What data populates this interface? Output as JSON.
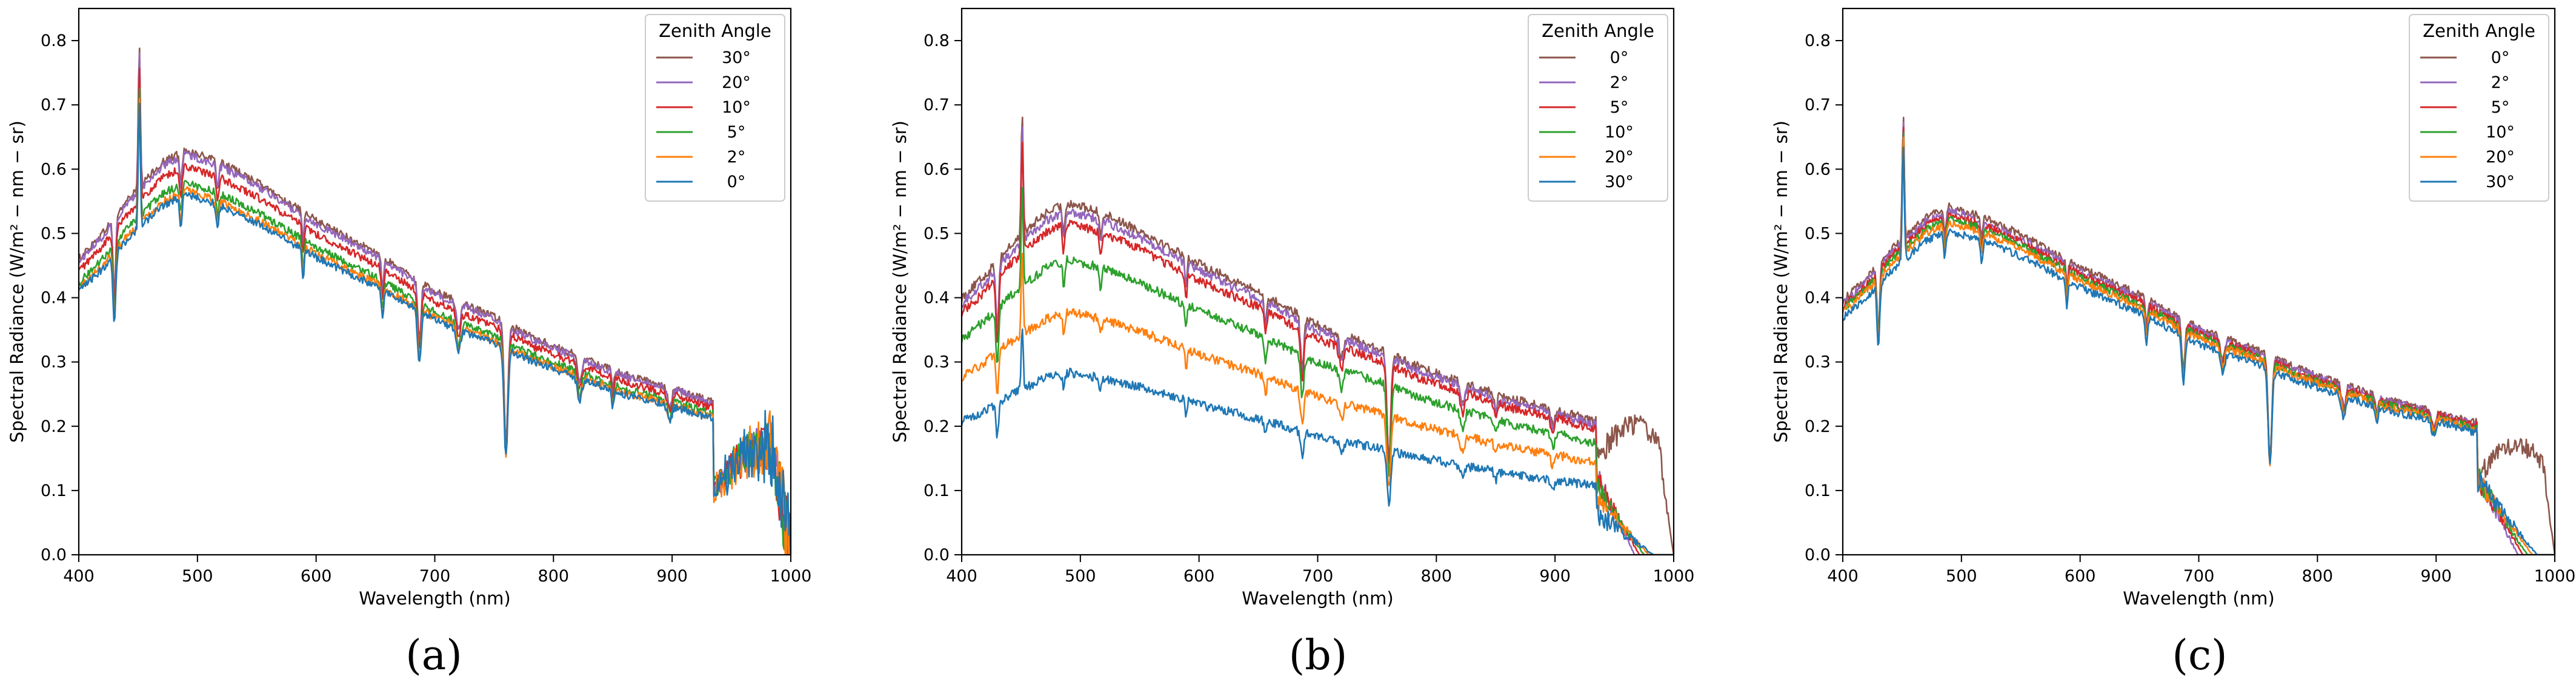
{
  "chart_data": [
    {
      "type": "line",
      "panel_label": "(a)",
      "xlabel": "Wavelength (nm)",
      "ylabel": "Spectral Radiance (W/m² − nm − sr)",
      "xlim": [
        400,
        1000
      ],
      "ylim": [
        0.0,
        0.85
      ],
      "xticks": [
        400,
        500,
        600,
        700,
        800,
        900,
        1000
      ],
      "yticks": [
        0.0,
        0.1,
        0.2,
        0.3,
        0.4,
        0.5,
        0.6,
        0.7,
        0.8
      ],
      "grid": false,
      "legend": {
        "title": "Zenith Angle",
        "position": "top-right"
      },
      "series": [
        {
          "name": "30°",
          "color": "#8c564b",
          "scale": 1.0,
          "noise": 0.006
        },
        {
          "name": "20°",
          "color": "#9467bd",
          "scale": 0.99,
          "noise": 0.006
        },
        {
          "name": "10°",
          "color": "#d62728",
          "scale": 0.96,
          "noise": 0.006
        },
        {
          "name": "5°",
          "color": "#2ca02c",
          "scale": 0.92,
          "noise": 0.006
        },
        {
          "name": "2°",
          "color": "#ff7f0e",
          "scale": 0.9,
          "noise": 0.006
        },
        {
          "name": "0°",
          "color": "#1f77b4",
          "scale": 0.89,
          "noise": 0.006
        }
      ],
      "tail": {
        "start": 935,
        "mode": "collapse_noisy",
        "peak": 0.17,
        "end_value": 0.0
      }
    },
    {
      "type": "line",
      "panel_label": "(b)",
      "xlabel": "Wavelength (nm)",
      "ylabel": "Spectral Radiance (W/m² − nm − sr)",
      "xlim": [
        400,
        1000
      ],
      "ylim": [
        0.0,
        0.85
      ],
      "xticks": [
        400,
        500,
        600,
        700,
        800,
        900,
        1000
      ],
      "yticks": [
        0.0,
        0.1,
        0.2,
        0.3,
        0.4,
        0.5,
        0.6,
        0.7,
        0.8
      ],
      "grid": false,
      "legend": {
        "title": "Zenith Angle",
        "position": "top-right"
      },
      "series": [
        {
          "name": "0°",
          "color": "#8c564b",
          "scale": 0.87,
          "noise": 0.007
        },
        {
          "name": "2°",
          "color": "#9467bd",
          "scale": 0.85,
          "noise": 0.007
        },
        {
          "name": "5°",
          "color": "#d62728",
          "scale": 0.82,
          "noise": 0.007
        },
        {
          "name": "10°",
          "color": "#2ca02c",
          "scale": 0.73,
          "noise": 0.007
        },
        {
          "name": "20°",
          "color": "#ff7f0e",
          "scale": 0.6,
          "noise": 0.007
        },
        {
          "name": "30°",
          "color": "#1f77b4",
          "scale": 0.45,
          "noise": 0.007
        }
      ],
      "tail": {
        "start": 935,
        "mode": "falloff",
        "end_value": 0.0
      }
    },
    {
      "type": "line",
      "panel_label": "(c)",
      "xlabel": "Wavelength (nm)",
      "ylabel": "Spectral Radiance (W/m² − nm − sr)",
      "xlim": [
        400,
        1000
      ],
      "ylim": [
        0.0,
        0.85
      ],
      "xticks": [
        400,
        500,
        600,
        700,
        800,
        900,
        1000
      ],
      "yticks": [
        0.0,
        0.1,
        0.2,
        0.3,
        0.4,
        0.5,
        0.6,
        0.7,
        0.8
      ],
      "grid": false,
      "legend": {
        "title": "Zenith Angle",
        "position": "top-right"
      },
      "series": [
        {
          "name": "0°",
          "color": "#8c564b",
          "scale": 0.86,
          "noise": 0.006
        },
        {
          "name": "2°",
          "color": "#9467bd",
          "scale": 0.85,
          "noise": 0.006
        },
        {
          "name": "5°",
          "color": "#d62728",
          "scale": 0.84,
          "noise": 0.006
        },
        {
          "name": "10°",
          "color": "#2ca02c",
          "scale": 0.83,
          "noise": 0.006
        },
        {
          "name": "20°",
          "color": "#ff7f0e",
          "scale": 0.82,
          "noise": 0.006
        },
        {
          "name": "30°",
          "color": "#1f77b4",
          "scale": 0.8,
          "noise": 0.006
        }
      ],
      "tail": {
        "start": 935,
        "mode": "falloff_first_recover",
        "end_value": 0.0
      }
    }
  ],
  "spectrum_model": {
    "continuum": [
      [
        400,
        0.46
      ],
      [
        420,
        0.5
      ],
      [
        440,
        0.55
      ],
      [
        470,
        0.61
      ],
      [
        490,
        0.63
      ],
      [
        520,
        0.61
      ],
      [
        550,
        0.58
      ],
      [
        600,
        0.52
      ],
      [
        650,
        0.47
      ],
      [
        700,
        0.41
      ],
      [
        750,
        0.37
      ],
      [
        780,
        0.34
      ],
      [
        820,
        0.31
      ],
      [
        860,
        0.28
      ],
      [
        900,
        0.26
      ],
      [
        930,
        0.24
      ]
    ],
    "spikes": [
      [
        451,
        0.22,
        1.2
      ]
    ],
    "dips": [
      [
        430,
        0.12,
        1.6
      ],
      [
        486,
        0.05,
        1.4
      ],
      [
        517,
        0.04,
        1.5
      ],
      [
        589,
        0.05,
        1.2
      ],
      [
        656,
        0.05,
        1.4
      ],
      [
        687,
        0.09,
        2.0
      ],
      [
        720,
        0.04,
        2.5
      ],
      [
        760,
        0.19,
        2.2
      ],
      [
        822,
        0.04,
        2.5
      ],
      [
        850,
        0.03,
        1.5
      ],
      [
        898,
        0.03,
        2.5
      ]
    ]
  }
}
